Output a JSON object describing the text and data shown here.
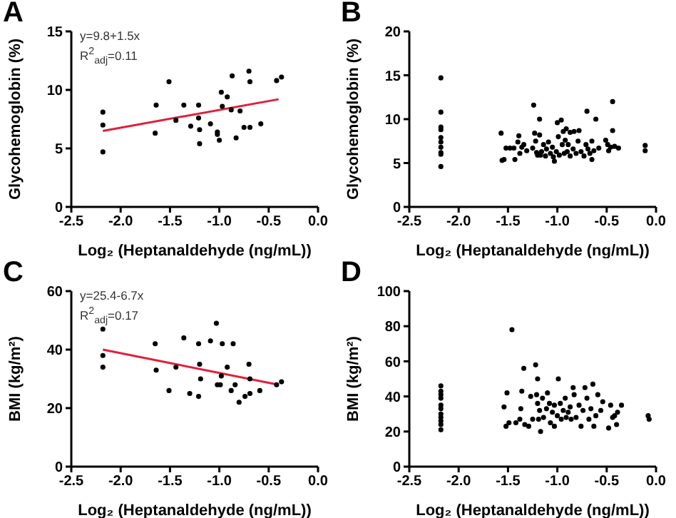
{
  "chart_data": [
    {
      "type": "scatter",
      "title": "A",
      "xlabel": "Log₂ (Heptanaldehyde (ng/mL))",
      "ylabel": "Glycohemoglobin (%)",
      "annotations": [
        "y=9.8+1.5x",
        "R$^{2}$$_{adj}$=0.11"
      ],
      "grid": false,
      "xlim": [
        -2.5,
        0
      ],
      "xticks": [
        {
          "value": -2.5,
          "label": "-2.5"
        },
        {
          "value": -2,
          "label": "-2.0"
        },
        {
          "value": -1.5,
          "label": "-1.5"
        },
        {
          "value": -1,
          "label": "-1.0"
        },
        {
          "value": -0.5,
          "label": "-0.5"
        },
        {
          "value": 0,
          "label": "0.0"
        }
      ],
      "ylim": [
        0,
        15
      ],
      "yticks": [
        0,
        5,
        10,
        15
      ],
      "series": [
        {
          "color": "#000000",
          "marker": "circle",
          "x": [
            -2.18,
            -2.18,
            -2.18,
            -1.64,
            -1.65,
            -1.51,
            -1.44,
            -1.36,
            -1.29,
            -1.21,
            -1.21,
            -1.2,
            -1.2,
            -1.09,
            -1.02,
            -1.02,
            -1.0,
            -0.98,
            -0.97,
            -0.92,
            -0.88,
            -0.87,
            -0.83,
            -0.79,
            -0.75,
            -0.7,
            -0.69,
            -0.69,
            -0.58,
            -0.42,
            -0.37
          ],
          "values": [
            8.1,
            7.0,
            4.7,
            8.7,
            6.3,
            10.7,
            7.4,
            8.7,
            6.9,
            8.7,
            7.6,
            6.6,
            5.4,
            7.1,
            6.4,
            6.2,
            5.7,
            9.8,
            8.6,
            9.4,
            8.3,
            11.2,
            5.9,
            8.2,
            6.8,
            11.6,
            10.7,
            6.8,
            7.1,
            10.8,
            11.1
          ]
        },
        {
          "type": "line",
          "color": "#e0203a",
          "x": [
            -2.18,
            -0.4
          ],
          "values": [
            6.5,
            9.2
          ]
        }
      ]
    },
    {
      "type": "scatter",
      "title": "B",
      "xlabel": "Log₂ (Heptanaldehyde (ng/mL))",
      "ylabel": "Glycohemoglobin (%)",
      "grid": false,
      "xlim": [
        -2.5,
        0
      ],
      "xticks": [
        {
          "value": -2.5,
          "label": "-2.5"
        },
        {
          "value": -2,
          "label": "-2.0"
        },
        {
          "value": -1.5,
          "label": "-1.5"
        },
        {
          "value": -1,
          "label": "-1.0"
        },
        {
          "value": -0.5,
          "label": "-0.5"
        },
        {
          "value": 0,
          "label": "0.0"
        }
      ],
      "ylim": [
        0,
        20
      ],
      "yticks": [
        0,
        5,
        10,
        15,
        20
      ],
      "series": [
        {
          "color": "#000000",
          "marker": "circle",
          "x": [
            -2.18,
            -2.18,
            -2.18,
            -2.18,
            -2.18,
            -2.18,
            -2.18,
            -2.18,
            -2.18,
            -2.18,
            -1.57,
            -1.56,
            -1.54,
            -1.52,
            -1.48,
            -1.44,
            -1.43,
            -1.4,
            -1.39,
            -1.38,
            -1.36,
            -1.34,
            -1.31,
            -1.25,
            -1.24,
            -1.23,
            -1.22,
            -1.21,
            -1.2,
            -1.18,
            -1.18,
            -1.17,
            -1.16,
            -1.14,
            -1.12,
            -1.11,
            -1.09,
            -1.07,
            -1.05,
            -1.04,
            -1.03,
            -1.01,
            -1.0,
            -0.99,
            -0.98,
            -0.96,
            -0.95,
            -0.94,
            -0.93,
            -0.92,
            -0.91,
            -0.9,
            -0.89,
            -0.87,
            -0.87,
            -0.84,
            -0.83,
            -0.81,
            -0.79,
            -0.78,
            -0.76,
            -0.73,
            -0.71,
            -0.7,
            -0.69,
            -0.67,
            -0.65,
            -0.65,
            -0.63,
            -0.61,
            -0.58,
            -0.51,
            -0.49,
            -0.48,
            -0.46,
            -0.44,
            -0.44,
            -0.42,
            -0.38,
            -0.11,
            -0.11
          ],
          "values": [
            14.7,
            10.8,
            9.1,
            8.8,
            7.9,
            7.4,
            6.8,
            6.2,
            6.0,
            4.6,
            8.4,
            5.3,
            5.4,
            6.7,
            6.7,
            6.7,
            5.4,
            7.4,
            8.1,
            6.1,
            6.8,
            7.1,
            6.4,
            6.7,
            11.6,
            8.4,
            7.5,
            6.2,
            5.9,
            10.0,
            8.2,
            5.9,
            6.3,
            7.1,
            5.8,
            6.6,
            7.4,
            6.1,
            6.8,
            5.7,
            5.2,
            6.3,
            9.6,
            8.0,
            5.9,
            9.9,
            7.1,
            8.6,
            6.1,
            7.6,
            8.9,
            6.3,
            7.1,
            8.5,
            5.8,
            6.6,
            8.6,
            6.1,
            7.5,
            8.7,
            6.3,
            5.8,
            7.1,
            10.9,
            6.6,
            6.1,
            5.4,
            7.5,
            6.4,
            10.0,
            6.7,
            7.6,
            7.1,
            6.4,
            6.8,
            12.0,
            8.7,
            6.9,
            6.7,
            7.0,
            6.4
          ]
        }
      ]
    },
    {
      "type": "scatter",
      "title": "C",
      "xlabel": "Log₂ (Heptanaldehyde (ng/mL))",
      "ylabel": "BMI (kg/m²)",
      "annotations": [
        "y=25.4-6.7x",
        "R$^{2}$$_{adj}$=0.17"
      ],
      "grid": false,
      "xlim": [
        -2.5,
        0
      ],
      "xticks": [
        {
          "value": -2.5,
          "label": "-2.5"
        },
        {
          "value": -2,
          "label": "-2.0"
        },
        {
          "value": -1.5,
          "label": "-1.5"
        },
        {
          "value": -1,
          "label": "-1.0"
        },
        {
          "value": -0.5,
          "label": "-0.5"
        },
        {
          "value": 0,
          "label": "0.0"
        }
      ],
      "ylim": [
        0,
        60
      ],
      "yticks": [
        0,
        20,
        40,
        60
      ],
      "series": [
        {
          "color": "#000000",
          "marker": "circle",
          "x": [
            -2.18,
            -2.18,
            -2.18,
            -1.65,
            -1.64,
            -1.51,
            -1.44,
            -1.36,
            -1.3,
            -1.21,
            -1.21,
            -1.2,
            -1.19,
            -1.09,
            -1.03,
            -1.02,
            -0.99,
            -0.98,
            -0.97,
            -0.92,
            -0.88,
            -0.86,
            -0.84,
            -0.8,
            -0.74,
            -0.7,
            -0.69,
            -0.69,
            -0.59,
            -0.42,
            -0.37
          ],
          "values": [
            47,
            38,
            34,
            42,
            33,
            26,
            34,
            44,
            25,
            42,
            24,
            35,
            30,
            43,
            49,
            28,
            28,
            31,
            42,
            34,
            26,
            42,
            28,
            22,
            24,
            35,
            30,
            25,
            26,
            28,
            29
          ]
        },
        {
          "type": "line",
          "color": "#e0203a",
          "x": [
            -2.18,
            -0.4
          ],
          "values": [
            40,
            28
          ]
        }
      ]
    },
    {
      "type": "scatter",
      "title": "D",
      "xlabel": "Log₂ (Heptanaldehyde (ng/mL))",
      "ylabel": "BMI (kg/m²)",
      "grid": false,
      "xlim": [
        -2.5,
        0
      ],
      "xticks": [
        {
          "value": -2.5,
          "label": "-2.5"
        },
        {
          "value": -2,
          "label": "-2.0"
        },
        {
          "value": -1.5,
          "label": "-1.5"
        },
        {
          "value": -1,
          "label": "-1.0"
        },
        {
          "value": -0.5,
          "label": "-0.5"
        },
        {
          "value": 0,
          "label": "0.0"
        }
      ],
      "ylim": [
        0,
        100
      ],
      "yticks": [
        0,
        20,
        40,
        60,
        80,
        100
      ],
      "series": [
        {
          "color": "#000000",
          "marker": "circle",
          "x": [
            -2.18,
            -2.18,
            -2.18,
            -2.18,
            -2.18,
            -2.18,
            -2.18,
            -2.18,
            -2.18,
            -2.18,
            -2.18,
            -1.54,
            -1.52,
            -1.51,
            -1.49,
            -1.46,
            -1.42,
            -1.38,
            -1.37,
            -1.36,
            -1.34,
            -1.33,
            -1.29,
            -1.27,
            -1.25,
            -1.22,
            -1.21,
            -1.2,
            -1.2,
            -1.19,
            -1.18,
            -1.17,
            -1.15,
            -1.14,
            -1.11,
            -1.1,
            -1.08,
            -1.07,
            -1.05,
            -1.03,
            -1.03,
            -1.0,
            -0.99,
            -0.97,
            -0.96,
            -0.94,
            -0.92,
            -0.91,
            -0.89,
            -0.87,
            -0.86,
            -0.84,
            -0.83,
            -0.81,
            -0.78,
            -0.76,
            -0.74,
            -0.72,
            -0.7,
            -0.68,
            -0.66,
            -0.64,
            -0.63,
            -0.61,
            -0.59,
            -0.56,
            -0.54,
            -0.48,
            -0.46,
            -0.44,
            -0.42,
            -0.4,
            -0.39,
            -0.35,
            -0.08,
            -0.07
          ],
          "values": [
            46,
            43,
            41,
            39,
            35,
            33,
            30,
            28,
            26,
            24,
            21,
            34,
            23,
            42,
            25,
            78,
            25,
            27,
            33,
            43,
            56,
            24,
            23,
            40,
            27,
            58,
            41,
            50,
            36,
            27,
            32,
            20,
            39,
            28,
            33,
            42,
            36,
            25,
            31,
            35,
            23,
            29,
            50,
            36,
            27,
            32,
            39,
            28,
            31,
            34,
            27,
            45,
            41,
            28,
            35,
            23,
            32,
            45,
            39,
            27,
            33,
            47,
            23,
            29,
            41,
            32,
            37,
            22,
            35,
            28,
            29,
            24,
            31,
            35,
            29,
            27
          ]
        }
      ]
    }
  ]
}
